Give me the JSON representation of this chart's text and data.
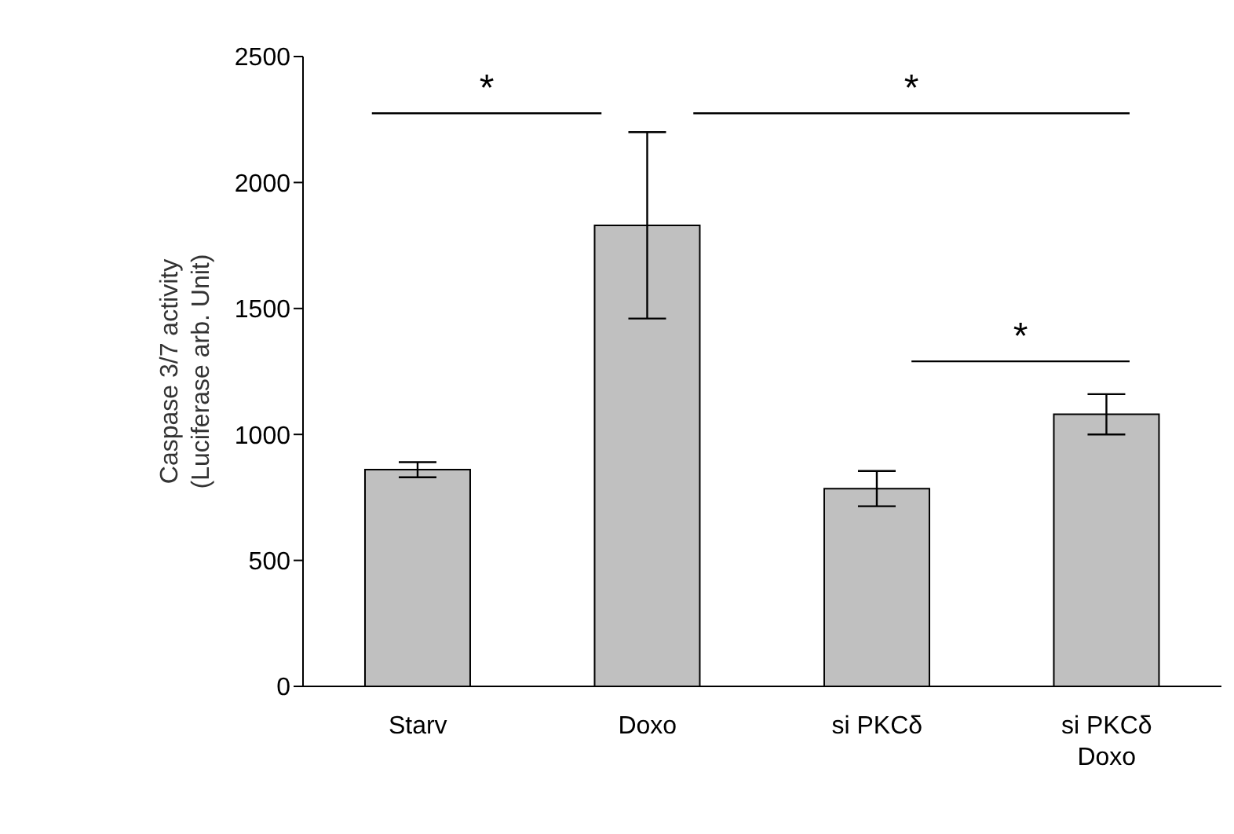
{
  "chart_data": {
    "type": "bar",
    "ylabel": "Caspase 3/7 activity\n(Luciferase arb. Unit)",
    "categories": [
      "Starv",
      "Doxo",
      "si PKCδ",
      "si PKCδ\nDoxo"
    ],
    "values": [
      860,
      1830,
      785,
      1080
    ],
    "errors": [
      30,
      370,
      70,
      80
    ],
    "color": "#c0c0c0",
    "ylim": [
      0,
      2500
    ],
    "yticks": [
      0,
      500,
      1000,
      1500,
      2000,
      2500
    ],
    "annotations": [
      "*",
      "*",
      "*"
    ]
  }
}
